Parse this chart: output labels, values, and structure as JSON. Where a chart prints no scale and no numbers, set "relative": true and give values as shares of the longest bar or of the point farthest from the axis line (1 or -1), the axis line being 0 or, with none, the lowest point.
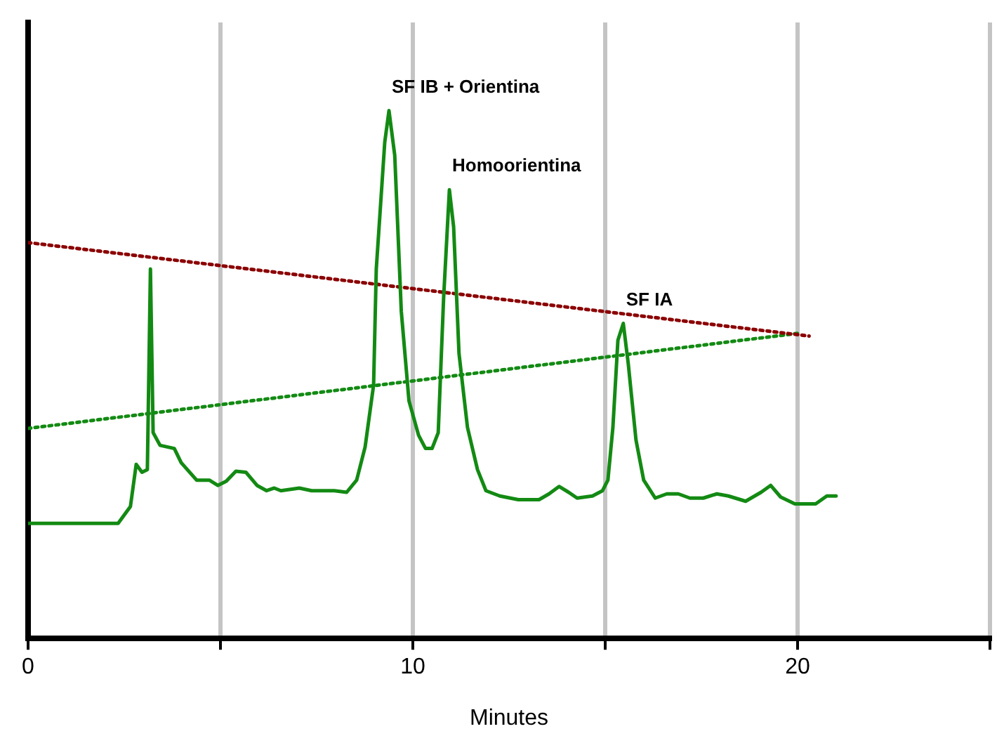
{
  "chart_data": {
    "type": "line",
    "relative": true,
    "xlabel": "Minutes",
    "xlim": [
      0,
      25
    ],
    "xticks": [
      0,
      {
        "value": 5,
        "label": null
      },
      10,
      {
        "value": 15,
        "label": null
      },
      20,
      {
        "value": 25,
        "label": null
      }
    ],
    "grid": "x",
    "legend": false,
    "marker": "none",
    "series": [
      {
        "color": "#138a13",
        "line_style": "solid",
        "x": [
          0,
          2.34,
          2.66,
          2.81,
          2.96,
          3.1,
          3.18,
          3.25,
          3.43,
          3.8,
          3.98,
          4.38,
          4.71,
          4.93,
          5.15,
          5.4,
          5.66,
          5.95,
          6.2,
          6.4,
          6.57,
          7.05,
          7.37,
          7.96,
          8.28,
          8.54,
          8.76,
          8.98,
          9.05,
          9.27,
          9.38,
          9.53,
          9.7,
          9.9,
          10.15,
          10.33,
          10.5,
          10.66,
          10.8,
          10.95,
          11.06,
          11.2,
          11.42,
          11.68,
          11.9,
          12.26,
          12.74,
          13.28,
          13.54,
          13.8,
          14.05,
          14.27,
          14.67,
          14.93,
          15.07,
          15.2,
          15.33,
          15.47,
          15.6,
          15.8,
          16,
          16.3,
          16.6,
          16.9,
          17.2,
          17.55,
          17.9,
          18.2,
          18.65,
          19.05,
          19.3,
          19.56,
          19.93,
          20.47,
          20.76,
          21
        ],
        "values": [
          0.218,
          0.218,
          0.25,
          0.33,
          0.315,
          0.32,
          0.7,
          0.39,
          0.366,
          0.36,
          0.333,
          0.3,
          0.3,
          0.29,
          0.298,
          0.317,
          0.315,
          0.29,
          0.28,
          0.285,
          0.28,
          0.285,
          0.28,
          0.28,
          0.277,
          0.3,
          0.363,
          0.48,
          0.7,
          0.94,
          1,
          0.915,
          0.62,
          0.45,
          0.385,
          0.36,
          0.36,
          0.39,
          0.645,
          0.85,
          0.78,
          0.54,
          0.4,
          0.32,
          0.28,
          0.27,
          0.263,
          0.263,
          0.274,
          0.288,
          0.277,
          0.266,
          0.27,
          0.28,
          0.3,
          0.4,
          0.565,
          0.597,
          0.52,
          0.376,
          0.3,
          0.266,
          0.274,
          0.274,
          0.266,
          0.266,
          0.274,
          0.27,
          0.26,
          0.277,
          0.29,
          0.268,
          0.255,
          0.255,
          0.27,
          0.27
        ]
      },
      {
        "color": "#8b0000",
        "line_style": "dotted",
        "x": [
          0,
          20.3
        ],
        "values": [
          0.75,
          0.573
        ]
      },
      {
        "color": "#138a13",
        "line_style": "dotted",
        "x": [
          0,
          20
        ],
        "values": [
          0.398,
          0.578
        ]
      }
    ],
    "annotations": [
      {
        "text": "SF IB + Orientina",
        "x": 9.38,
        "y": 1
      },
      {
        "text": "Homoorientina",
        "x": 10.95,
        "y": 0.85
      },
      {
        "text": "SF IA",
        "x": 15.47,
        "y": 0.597
      }
    ]
  }
}
